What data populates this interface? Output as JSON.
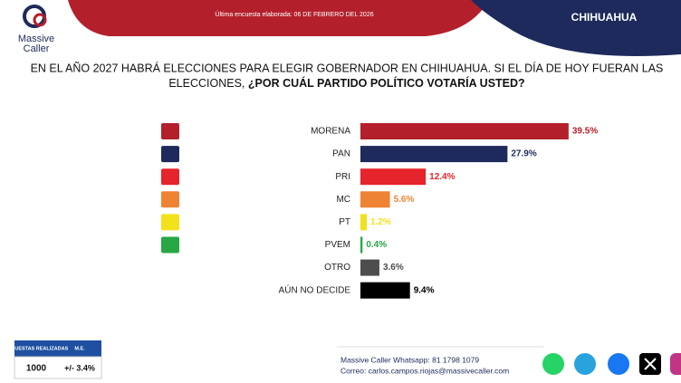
{
  "header": {
    "logo_lines": [
      "Massive",
      "Caller"
    ],
    "date_note": "Última encuesta elaborada: 06 DE FEBRERO DEL 2026",
    "region": "CHIHUAHUA"
  },
  "question": {
    "line1": "EN EL AÑO 2027 HABRÁ ELECCIONES PARA ELEGIR GOBERNADOR EN CHIHUAHUA. SI EL DÍA DE HOY FUERAN LAS",
    "line2": "ELECCIONES,",
    "line2_bold": "¿POR CUÁL PARTIDO POLÍTICO VOTARÍA USTED?"
  },
  "chart_data": {
    "type": "hbar",
    "categories": [
      "MORENA",
      "PAN",
      "PRI",
      "MC",
      "PT",
      "PVEM",
      "OTRO",
      "AÚN NO DECIDE"
    ],
    "values": [
      39.5,
      27.9,
      12.4,
      5.6,
      1.2,
      0.4,
      3.6,
      9.4
    ],
    "value_labels": [
      "39.5%",
      "27.9%",
      "12.4%",
      "5.6%",
      "1.2%",
      "0.4%",
      "3.6%",
      "9.4%"
    ],
    "colors": [
      "#b3202c",
      "#1e2a5c",
      "#e5242b",
      "#ef8334",
      "#f2e21c",
      "#27a844",
      "#4d4d4d",
      "#000000"
    ]
  },
  "survey": {
    "headers": [
      "ENCUESTAS REALIZADAS",
      "M.E."
    ],
    "values": [
      "1000",
      "+/- 3.4%"
    ]
  },
  "contact": {
    "whatsapp": "Massive Caller Whatsapp: 81 1798 1079",
    "email": "Correo: carlos.campos.riojas@massivecaller.com"
  }
}
